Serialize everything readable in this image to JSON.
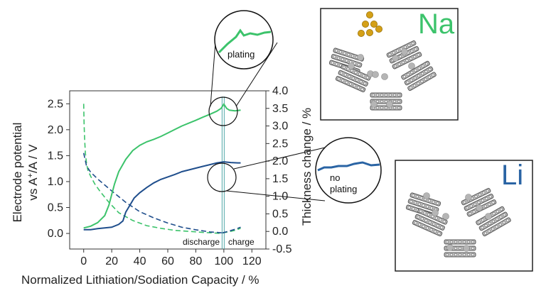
{
  "chart_data": {
    "type": "line",
    "xlabel": "Normalized Lithiation/Sodiation Capacity / %",
    "ylabel_left_line1": "Electrode potential",
    "ylabel_left_line2": "vs A",
    "ylabel_left_sup": "+",
    "ylabel_left_line2b": "/A / V",
    "ylabel_right": "Thickness change / %",
    "x_ticks": [
      "0",
      "20",
      "40",
      "60",
      "80",
      "100",
      "120"
    ],
    "y_left_ticks": [
      "0.0",
      "0.5",
      "1.0",
      "1.5",
      "2.0",
      "2.5"
    ],
    "y_right_ticks": [
      "-0.5",
      "0.0",
      "0.5",
      "1.0",
      "1.5",
      "2.0",
      "2.5",
      "3.0",
      "3.5",
      "4.0"
    ],
    "xlim": [
      -10,
      130
    ],
    "ylim_left": [
      -0.3,
      2.75
    ],
    "ylim_right": [
      -0.5,
      4.0
    ],
    "discharge_label": "discharge",
    "charge_label": "charge",
    "divider_x": 99.5,
    "series": [
      {
        "key": "na_potential",
        "axis": "left",
        "dashed": true,
        "color": "#3cc36b",
        "x": [
          0,
          0.3,
          0.7,
          1.2,
          2,
          3,
          5,
          8,
          12,
          18,
          25,
          35,
          45,
          55,
          65,
          75,
          85,
          92,
          98
        ],
        "y": [
          2.5,
          2.1,
          1.8,
          1.55,
          1.35,
          1.22,
          1.1,
          0.95,
          0.8,
          0.6,
          0.4,
          0.25,
          0.15,
          0.1,
          0.06,
          0.04,
          0.02,
          0.01,
          0.0
        ]
      },
      {
        "key": "li_potential",
        "axis": "left",
        "dashed": true,
        "color": "#1f4e8c",
        "x": [
          0,
          2,
          5,
          10,
          20,
          30,
          40,
          50,
          60,
          70,
          80,
          90,
          95,
          99
        ],
        "y": [
          1.55,
          1.3,
          1.18,
          1.05,
          0.82,
          0.6,
          0.42,
          0.3,
          0.2,
          0.12,
          0.07,
          0.03,
          0.02,
          0.01
        ]
      },
      {
        "key": "na_potential_charge",
        "axis": "left",
        "dashed": true,
        "color": "#3cc36b",
        "x": [
          99,
          103,
          108,
          112
        ],
        "y": [
          0.01,
          0.03,
          0.06,
          0.1
        ]
      },
      {
        "key": "li_potential_charge",
        "axis": "left",
        "dashed": true,
        "color": "#1f4e8c",
        "x": [
          99,
          103,
          108,
          112
        ],
        "y": [
          0.01,
          0.04,
          0.08,
          0.12
        ]
      },
      {
        "key": "na_thickness",
        "axis": "right",
        "dashed": false,
        "color": "#3cc36b",
        "x": [
          0,
          5,
          10,
          15,
          18,
          20,
          22,
          25,
          30,
          35,
          40,
          45,
          50,
          55,
          60,
          65,
          70,
          75,
          80,
          85,
          90,
          95,
          98,
          100,
          102,
          104,
          108,
          112
        ],
        "y": [
          0.1,
          0.15,
          0.25,
          0.45,
          0.75,
          1.05,
          1.35,
          1.7,
          2.05,
          2.3,
          2.45,
          2.55,
          2.62,
          2.7,
          2.8,
          2.9,
          3.0,
          3.08,
          3.16,
          3.25,
          3.33,
          3.42,
          3.5,
          3.62,
          3.5,
          3.45,
          3.43,
          3.45
        ]
      },
      {
        "key": "li_thickness",
        "axis": "right",
        "dashed": false,
        "color": "#1f4e8c",
        "x": [
          0,
          5,
          10,
          15,
          20,
          25,
          28,
          30,
          33,
          36,
          40,
          45,
          50,
          55,
          60,
          65,
          70,
          75,
          80,
          85,
          90,
          95,
          100,
          105,
          110,
          112
        ],
        "y": [
          0.05,
          0.05,
          0.08,
          0.1,
          0.12,
          0.2,
          0.3,
          0.55,
          0.75,
          0.95,
          1.1,
          1.25,
          1.38,
          1.48,
          1.55,
          1.62,
          1.7,
          1.75,
          1.8,
          1.85,
          1.9,
          1.95,
          1.98,
          1.96,
          1.95,
          1.95
        ]
      }
    ],
    "callouts": {
      "plating_label": "plating",
      "no_plating_label_line1": "no",
      "no_plating_label_line2": "plating"
    }
  },
  "panels": {
    "na_label": "Na",
    "li_label": "Li",
    "na_color": "#3cc36b",
    "li_color": "#2a64a4",
    "gold_color": "#d4a017"
  }
}
